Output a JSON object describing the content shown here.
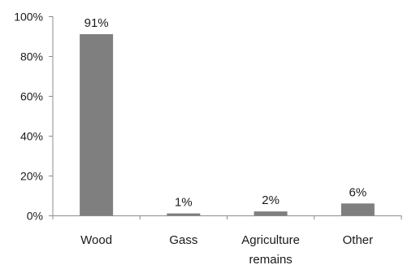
{
  "chart_data": {
    "type": "bar",
    "categories": [
      [
        "Wood"
      ],
      [
        "Gass"
      ],
      [
        "Agriculture",
        "remains"
      ],
      [
        "Other"
      ]
    ],
    "values": [
      91,
      1,
      2,
      6
    ],
    "data_labels": [
      "91%",
      "1%",
      "2%",
      "6%"
    ],
    "ylim": [
      0,
      100
    ],
    "yticks": [
      0,
      20,
      40,
      60,
      80,
      100
    ],
    "ytick_labels": [
      "0%",
      "20%",
      "40%",
      "60%",
      "80%",
      "100%"
    ],
    "title": "",
    "xlabel": "",
    "ylabel": "",
    "grid": false,
    "legend": "none",
    "bar_color": "#7f7f7f",
    "axis_color": "#8c8c8c"
  }
}
